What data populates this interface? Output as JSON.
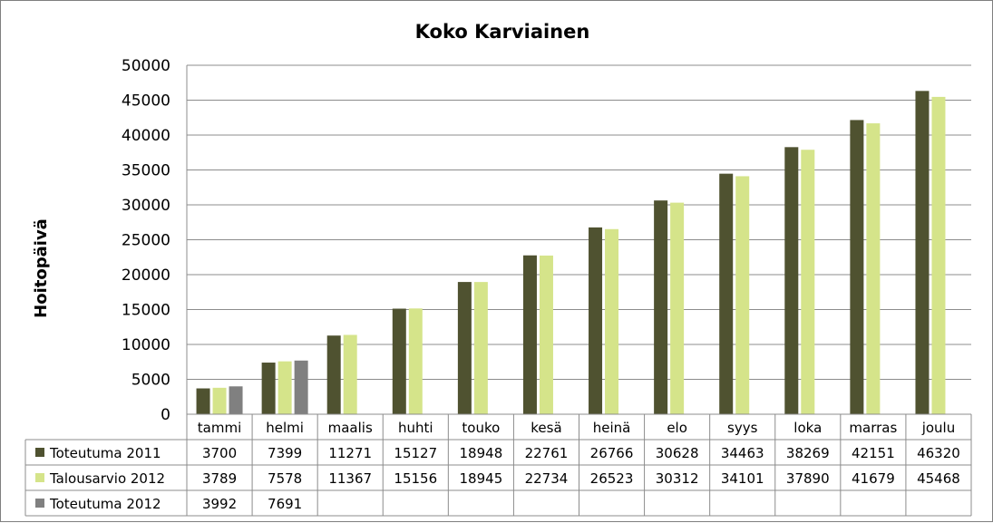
{
  "chart_data": {
    "type": "bar",
    "title": "Koko Karviainen",
    "xlabel": "",
    "ylabel": "Hoitopäivä",
    "ylim": [
      0,
      50000
    ],
    "yticks": [
      "0",
      "5000",
      "10000",
      "15000",
      "20000",
      "25000",
      "30000",
      "35000",
      "40000",
      "45000",
      "50000"
    ],
    "grid": true,
    "legend": "data-table",
    "categories": [
      "tammi",
      "helmi",
      "maalis",
      "huhti",
      "touko",
      "kesä",
      "heinä",
      "elo",
      "syys",
      "loka",
      "marras",
      "joulu"
    ],
    "series": [
      {
        "name": "Toteutuma 2011",
        "color": "#4f5230",
        "values": [
          3700,
          7399,
          11271,
          15127,
          18948,
          22761,
          26766,
          30628,
          34463,
          38269,
          42151,
          46320
        ],
        "labels": [
          "3700",
          "7399",
          "11271",
          "15127",
          "18948",
          "22761",
          "26766",
          "30628",
          "34463",
          "38269",
          "42151",
          "46320"
        ]
      },
      {
        "name": "Talousarvio 2012",
        "color": "#d5e48a",
        "values": [
          3789,
          7578,
          11367,
          15156,
          18945,
          22734,
          26523,
          30312,
          34101,
          37890,
          41679,
          45468
        ],
        "labels": [
          "3789",
          "7578",
          "11367",
          "15156",
          "18945",
          "22734",
          "26523",
          "30312",
          "34101",
          "37890",
          "41679",
          "45468"
        ]
      },
      {
        "name": "Toteutuma 2012",
        "color": "#808080",
        "values": [
          3992,
          7691,
          null,
          null,
          null,
          null,
          null,
          null,
          null,
          null,
          null,
          null
        ],
        "labels": [
          "3992",
          "7691",
          "",
          "",
          "",
          "",
          "",
          "",
          "",
          "",
          "",
          ""
        ]
      }
    ]
  }
}
